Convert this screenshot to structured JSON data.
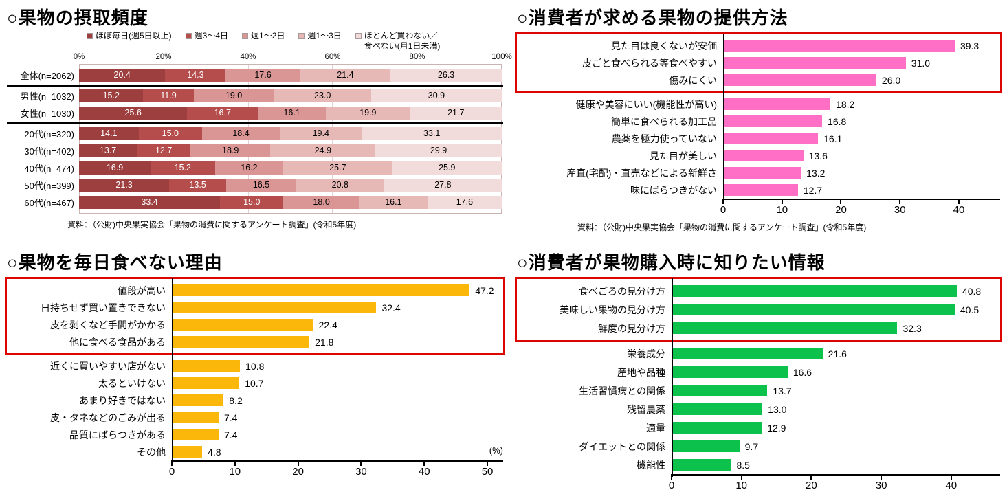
{
  "chart_data": [
    {
      "type": "stacked-bar-horizontal",
      "title": "○果物の摂取頻度",
      "source": "資料：（公財)中央果実協会「果物の消費に関するアンケート調査」(令和5年度)",
      "legend": [
        "ほぼ毎日(週5日以上)",
        "週3～4日",
        "週1～2日",
        "週1～3日",
        "ほとんど買わない／\n食べない(月1日未満)"
      ],
      "colors": [
        "#9e3f3f",
        "#b44d4b",
        "#d99694",
        "#e6b9b7",
        "#f2dcdb"
      ],
      "text_colors": [
        "#ffffff",
        "#ffffff",
        "#000000",
        "#000000",
        "#000000"
      ],
      "categories": [
        "全体(n=2062)",
        "男性(n=1032)",
        "女性(n=1030)",
        "20代(n=320)",
        "30代(n=402)",
        "40代(n=474)",
        "50代(n=399)",
        "60代(n=467)"
      ],
      "series": [
        {
          "name": "ほぼ毎日(週5日以上)",
          "values": [
            20.4,
            15.2,
            25.6,
            14.1,
            13.7,
            16.9,
            21.3,
            33.4
          ]
        },
        {
          "name": "週3～4日",
          "values": [
            14.3,
            11.9,
            16.7,
            15.0,
            12.7,
            15.2,
            13.5,
            15.0
          ]
        },
        {
          "name": "週1～2日",
          "values": [
            17.6,
            19.0,
            16.1,
            18.4,
            18.9,
            16.2,
            16.5,
            18.0
          ]
        },
        {
          "name": "週1～3日",
          "values": [
            21.4,
            23.0,
            19.9,
            19.4,
            24.9,
            25.7,
            20.8,
            16.1
          ]
        },
        {
          "name": "ほとんど買わない／食べない(月1日未満)",
          "values": [
            26.3,
            30.9,
            21.7,
            33.1,
            29.9,
            25.9,
            27.8,
            17.6
          ]
        }
      ],
      "x_ticks": [
        "0%",
        "20%",
        "40%",
        "60%",
        "80%",
        "100%"
      ],
      "xlim": [
        0,
        100
      ],
      "separators_after": [
        0,
        2
      ],
      "grid": true,
      "legend_position": "top"
    },
    {
      "type": "bar",
      "title": "○消費者が求める果物の提供方法",
      "source": "資料：（公財)中央果実協会「果物の消費に関するアンケート調査」(令和5年度)",
      "categories": [
        "見た目は良くないが安価",
        "皮ごと食べられる等食べやすい",
        "傷みにくい",
        "健康や美容にいい(機能性が高い)",
        "簡単に食べられる加工品",
        "農薬を極力使っていない",
        "見た目が美しい",
        "産直(宅配)・直売などによる新鮮さ",
        "味にばらつきがない"
      ],
      "values": [
        39.3,
        31.0,
        26.0,
        18.2,
        16.8,
        16.1,
        13.6,
        13.2,
        12.7
      ],
      "bar_color": "#ff6fc5",
      "highlight_rows": 3,
      "highlight_color": "#dd0500",
      "x_ticks": [
        0,
        10,
        20,
        30,
        40
      ],
      "axis_max": 47,
      "unit": ""
    },
    {
      "type": "bar",
      "title": "○果物を毎日食べない理由",
      "source": "",
      "categories": [
        "値段が高い",
        "日持ちせず買い置きできない",
        "皮を剥くなど手間がかかる",
        "他に食べる食品がある",
        "近くに買いやすい店がない",
        "太るといけない",
        "あまり好きではない",
        "皮・タネなどのごみが出る",
        "品質にばらつきがある",
        "その他"
      ],
      "values": [
        47.2,
        32.4,
        22.4,
        21.8,
        10.8,
        10.7,
        8.2,
        7.4,
        7.4,
        4.8
      ],
      "bar_color": "#fbb80b",
      "highlight_rows": 4,
      "highlight_color": "#dd0500",
      "x_ticks": [
        0,
        10,
        20,
        30,
        40,
        50
      ],
      "axis_max": 52.5,
      "unit": "(%)"
    },
    {
      "type": "bar",
      "title": "○消費者が果物購入時に知りたい情報",
      "source": "",
      "categories": [
        "食べごろの見分け方",
        "美味しい果物の見分け方",
        "鮮度の見分け方",
        "栄養成分",
        "産地や品種",
        "生活習慣病との関係",
        "残留農薬",
        "適量",
        "ダイエットとの関係",
        "機能性"
      ],
      "values": [
        40.8,
        40.5,
        32.3,
        21.6,
        16.6,
        13.7,
        13.0,
        12.9,
        9.7,
        8.5
      ],
      "bar_color": "#0cc24d",
      "highlight_rows": 3,
      "highlight_color": "#dd0500",
      "x_ticks": [
        0,
        10,
        20,
        30,
        40
      ],
      "axis_max": 47,
      "unit": ""
    }
  ]
}
